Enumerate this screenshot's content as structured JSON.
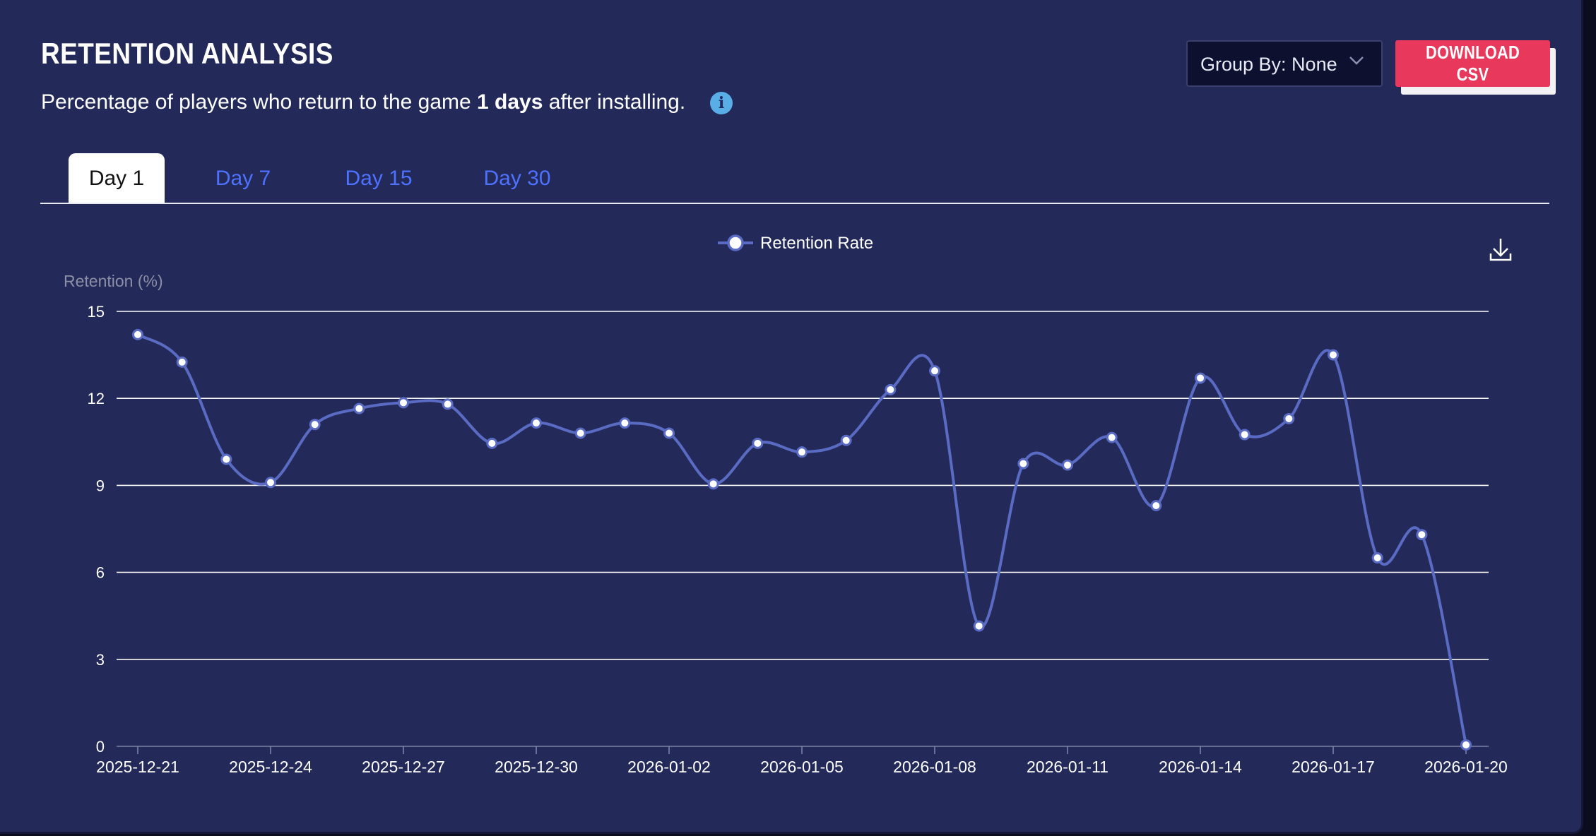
{
  "header": {
    "title": "RETENTION ANALYSIS",
    "subtitle_before": "Percentage of players who return to the game ",
    "subtitle_bold": "1 days",
    "subtitle_after": " after installing.",
    "info_icon": "info-icon"
  },
  "controls": {
    "group_by_label": "Group By: None",
    "group_by_icon": "chevron-down-icon",
    "download_label": "DOWNLOAD CSV"
  },
  "tabs": [
    {
      "label": "Day 1",
      "active": true
    },
    {
      "label": "Day 7",
      "active": false
    },
    {
      "label": "Day 15",
      "active": false
    },
    {
      "label": "Day 30",
      "active": false
    }
  ],
  "toolbar": {
    "export_icon": "download-icon"
  },
  "colors": {
    "background": "#232958",
    "line": "#5a6bc4",
    "accent": "#e8385c",
    "tab_link": "#4e72ff",
    "info": "#5aaee8"
  },
  "chart_data": {
    "type": "line",
    "smooth": true,
    "legend": {
      "position": "top-center",
      "entries": [
        "Retention Rate"
      ]
    },
    "ylabel": "Retention (%)",
    "xlabel": "",
    "ylim": [
      0,
      15
    ],
    "yticks": [
      0,
      3,
      6,
      9,
      12,
      15
    ],
    "grid": true,
    "x": [
      "2025-12-21",
      "2025-12-22",
      "2025-12-23",
      "2025-12-24",
      "2025-12-25",
      "2025-12-26",
      "2025-12-27",
      "2025-12-28",
      "2025-12-29",
      "2025-12-30",
      "2025-12-31",
      "2026-01-01",
      "2026-01-02",
      "2026-01-03",
      "2026-01-04",
      "2026-01-05",
      "2026-01-06",
      "2026-01-07",
      "2026-01-08",
      "2026-01-09",
      "2026-01-10",
      "2026-01-11",
      "2026-01-12",
      "2026-01-13",
      "2026-01-14",
      "2026-01-15",
      "2026-01-16",
      "2026-01-17",
      "2026-01-18",
      "2026-01-19",
      "2026-01-20"
    ],
    "xticks": [
      "2025-12-21",
      "2025-12-24",
      "2025-12-27",
      "2025-12-30",
      "2026-01-02",
      "2026-01-05",
      "2026-01-08",
      "2026-01-11",
      "2026-01-14",
      "2026-01-17",
      "2026-01-20"
    ],
    "series": [
      {
        "name": "Retention Rate",
        "values": [
          14.2,
          13.25,
          9.9,
          9.1,
          11.1,
          11.65,
          11.85,
          11.8,
          10.45,
          11.15,
          10.8,
          11.15,
          10.8,
          9.05,
          10.45,
          10.15,
          10.55,
          12.3,
          12.95,
          4.15,
          9.75,
          9.7,
          10.65,
          8.3,
          12.7,
          10.75,
          11.3,
          13.5,
          6.5,
          7.3,
          0.05
        ]
      }
    ]
  }
}
